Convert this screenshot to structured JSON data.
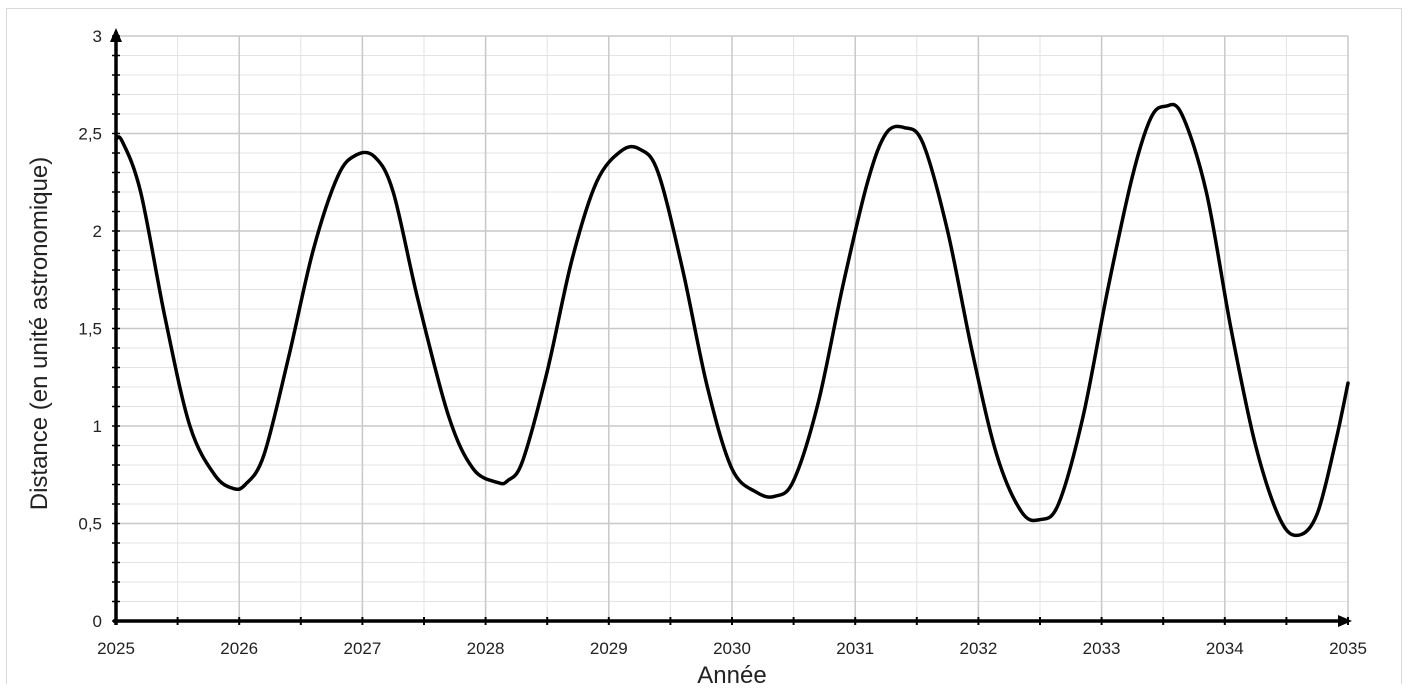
{
  "chart_data": {
    "type": "line",
    "title": "",
    "xlabel": "Année",
    "ylabel": "Distance (en unité astronomique)",
    "xlim": [
      2025,
      2035
    ],
    "ylim": [
      0,
      3
    ],
    "x_ticks": [
      2025,
      2026,
      2027,
      2028,
      2029,
      2030,
      2031,
      2032,
      2033,
      2034,
      2035
    ],
    "x_tick_labels": [
      "2025",
      "2026",
      "2027",
      "2028",
      "2029",
      "2030",
      "2031",
      "2032",
      "2033",
      "2034",
      "2035"
    ],
    "y_ticks": [
      0,
      0.5,
      1,
      1.5,
      2,
      2.5,
      3
    ],
    "y_tick_labels": [
      "0",
      "0,5",
      "1",
      "1,5",
      "2",
      "2,5",
      "3"
    ],
    "grid": true,
    "legend": "none",
    "line_color": "#000000",
    "grid_color": "#c8c8c8",
    "minor_grid_color": "#e3e3e3",
    "series": [
      {
        "x": [
          2025.0,
          2025.05,
          2025.2,
          2025.4,
          2025.6,
          2025.8,
          2025.95,
          2026.05,
          2026.2,
          2026.4,
          2026.6,
          2026.8,
          2026.95,
          2027.1,
          2027.25,
          2027.45,
          2027.7,
          2027.9,
          2028.1,
          2028.18,
          2028.3,
          2028.5,
          2028.7,
          2028.9,
          2029.1,
          2029.25,
          2029.4,
          2029.6,
          2029.8,
          2030.0,
          2030.2,
          2030.35,
          2030.5,
          2030.7,
          2030.9,
          2031.1,
          2031.25,
          2031.4,
          2031.55,
          2031.75,
          2031.95,
          2032.15,
          2032.35,
          2032.5,
          2032.65,
          2032.85,
          2033.05,
          2033.25,
          2033.4,
          2033.52,
          2033.65,
          2033.85,
          2034.05,
          2034.25,
          2034.45,
          2034.6,
          2034.75,
          2034.9,
          2035.0
        ],
        "y": [
          2.47,
          2.46,
          2.2,
          1.55,
          1.0,
          0.75,
          0.68,
          0.7,
          0.85,
          1.35,
          1.9,
          2.28,
          2.39,
          2.38,
          2.2,
          1.65,
          1.05,
          0.78,
          0.71,
          0.72,
          0.82,
          1.28,
          1.85,
          2.25,
          2.41,
          2.42,
          2.3,
          1.8,
          1.2,
          0.78,
          0.66,
          0.64,
          0.72,
          1.12,
          1.72,
          2.25,
          2.5,
          2.53,
          2.45,
          2.0,
          1.38,
          0.85,
          0.56,
          0.52,
          0.6,
          1.05,
          1.7,
          2.28,
          2.58,
          2.64,
          2.6,
          2.2,
          1.5,
          0.9,
          0.52,
          0.44,
          0.55,
          0.92,
          1.22
        ]
      }
    ]
  }
}
